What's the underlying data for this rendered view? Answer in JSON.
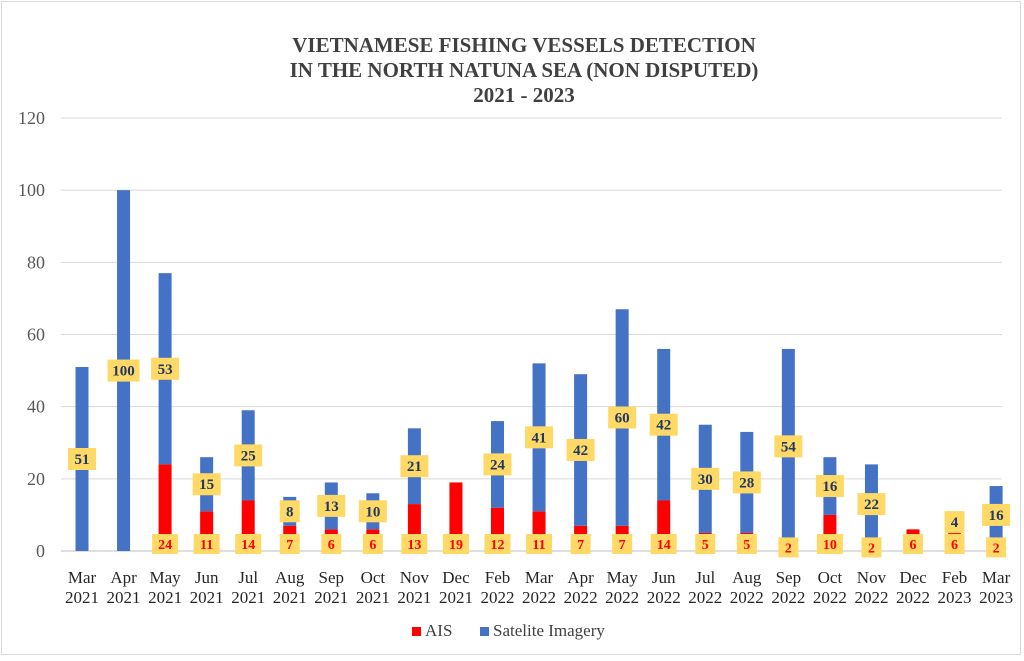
{
  "chart_data": {
    "type": "bar",
    "title_lines": [
      "VIETNAMESE FISHING VESSELS DETECTION",
      "IN THE NORTH NATUNA SEA  (NON DISPUTED)",
      "2021 - 2023"
    ],
    "categories": [
      [
        "Mar",
        "2021"
      ],
      [
        "Apr",
        "2021"
      ],
      [
        "May",
        "2021"
      ],
      [
        "Jun",
        "2021"
      ],
      [
        "Jul",
        "2021"
      ],
      [
        "Aug",
        "2021"
      ],
      [
        "Sep",
        "2021"
      ],
      [
        "Oct",
        "2021"
      ],
      [
        "Nov",
        "2021"
      ],
      [
        "Dec",
        "2021"
      ],
      [
        "Feb",
        "2022"
      ],
      [
        "Mar",
        "2022"
      ],
      [
        "Apr",
        "2022"
      ],
      [
        "May",
        "2022"
      ],
      [
        "Jun",
        "2022"
      ],
      [
        "Jul",
        "2022"
      ],
      [
        "Aug",
        "2022"
      ],
      [
        "Sep",
        "2022"
      ],
      [
        "Oct",
        "2022"
      ],
      [
        "Nov",
        "2022"
      ],
      [
        "Dec",
        "2022"
      ],
      [
        "Feb",
        "2023"
      ],
      [
        "Mar",
        "2023"
      ]
    ],
    "series": [
      {
        "name": "AIS",
        "color": "#ff0000",
        "values": [
          null,
          null,
          24,
          11,
          14,
          7,
          6,
          6,
          13,
          19,
          12,
          11,
          7,
          7,
          14,
          5,
          5,
          2,
          10,
          2,
          6,
          6,
          2
        ]
      },
      {
        "name": "Satelite Imagery",
        "color": "#4472c4",
        "values": [
          51,
          100,
          53,
          15,
          25,
          8,
          13,
          10,
          21,
          null,
          24,
          41,
          42,
          60,
          42,
          30,
          28,
          54,
          16,
          22,
          null,
          4,
          16
        ]
      }
    ],
    "ylim": [
      0,
      120
    ],
    "yticks": [
      0,
      20,
      40,
      60,
      80,
      100,
      120
    ],
    "grid": true,
    "legend": "bottom-center",
    "label_box_color": "#ffd966"
  }
}
